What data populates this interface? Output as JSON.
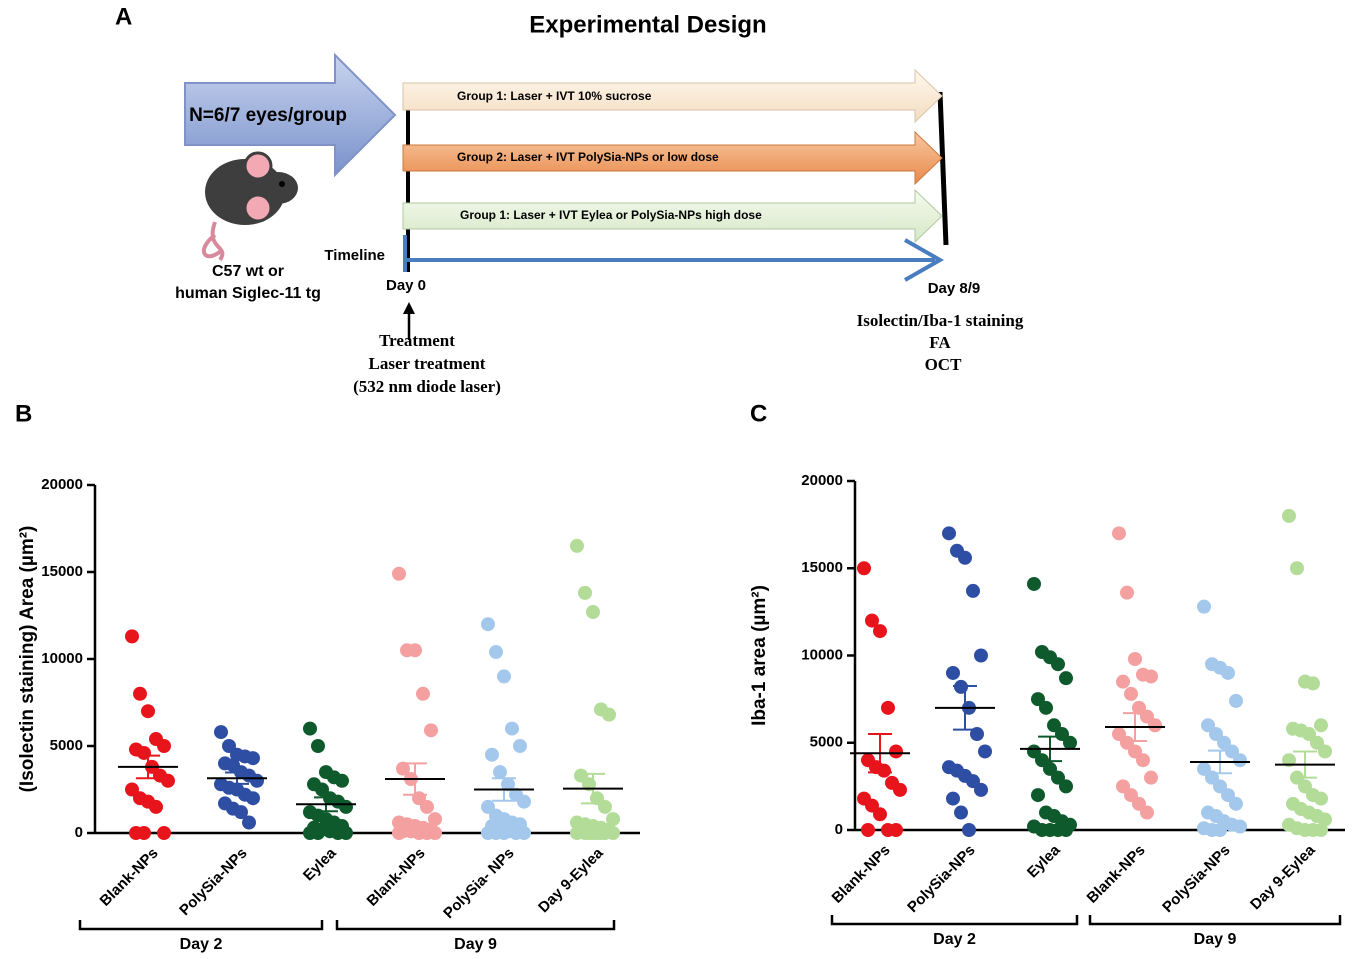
{
  "panel_a": {
    "label": "A",
    "title": "Experimental Design",
    "big_arrow": "N=6/7 eyes/group",
    "mouse_lines": [
      "C57 wt or",
      "human Siglec-11 tg"
    ],
    "groups": [
      "Group 1: Laser + IVT 10% sucrose",
      "Group 2: Laser + IVT PolySia-NPs or low dose",
      "Group 1: Laser + IVT Eylea or PolySia-NPs high dose"
    ],
    "timeline": "Timeline",
    "start": "Day 0",
    "end": "Day 8/9",
    "treatment_lines": [
      "Treatment",
      "Laser treatment",
      "(532 nm diode laser)"
    ],
    "readout_lines": [
      "Isolectin/Iba-1 staining",
      "FA",
      "OCT"
    ]
  },
  "chart_data": [
    {
      "type": "dotplot",
      "panel": "B",
      "y_label": "(Isolectin staining) Area (µm²)",
      "ylim": [
        0,
        20000
      ],
      "yticks": [
        0,
        5000,
        10000,
        15000,
        20000
      ],
      "day_groups": [
        "Day 2",
        "Day 9"
      ],
      "series": [
        {
          "name": "Blank-NPs",
          "color": "#e8141c",
          "values": [
            11300,
            8000,
            7000,
            5400,
            5000,
            4800,
            4600,
            3800,
            3300,
            3000,
            2500,
            2000,
            1800,
            1500,
            0,
            0,
            0
          ],
          "mean": 3800,
          "sem": 650
        },
        {
          "name": "PolySia-NPs",
          "color": "#2e4ea3",
          "values": [
            5800,
            5000,
            4500,
            4400,
            4300,
            4000,
            3900,
            3500,
            3300,
            3000,
            2800,
            2600,
            2500,
            2200,
            2000,
            1700,
            1400,
            1200,
            600
          ],
          "mean": 3150,
          "sem": 330
        },
        {
          "name": "Eylea",
          "color": "#0e5a2c",
          "values": [
            6000,
            5000,
            3500,
            3200,
            3000,
            2800,
            2500,
            2000,
            1800,
            1500,
            1200,
            1000,
            800,
            600,
            400,
            300,
            200,
            100,
            0,
            0,
            0,
            0
          ],
          "mean": 1650,
          "sem": 400
        },
        {
          "name": "Blank-NPs",
          "color": "#f4a0a0",
          "values": [
            14900,
            10500,
            10500,
            8000,
            5900,
            3700,
            3100,
            2000,
            1500,
            800,
            600,
            500,
            400,
            300,
            200,
            100,
            100,
            0,
            0,
            0,
            0
          ],
          "mean": 3100,
          "sem": 900
        },
        {
          "name": "PolySia- NPs",
          "color": "#a4c8ec",
          "values": [
            12000,
            10400,
            9000,
            6000,
            5000,
            4500,
            3500,
            2800,
            2200,
            1800,
            1500,
            1000,
            800,
            600,
            500,
            400,
            200,
            100,
            0,
            0,
            0,
            0,
            0
          ],
          "mean": 2500,
          "sem": 650
        },
        {
          "name": "Day 9-Eylea",
          "color": "#b2dc98",
          "values": [
            16500,
            13800,
            12700,
            7100,
            6800,
            3300,
            2800,
            2000,
            1500,
            800,
            600,
            500,
            400,
            300,
            200,
            100,
            0,
            0,
            0,
            0,
            0,
            0,
            0,
            0
          ],
          "mean": 2550,
          "sem": 850
        }
      ]
    },
    {
      "type": "dotplot",
      "panel": "C",
      "y_label": "Iba-1 area (µm²)",
      "ylim": [
        0,
        20000
      ],
      "yticks": [
        0,
        5000,
        10000,
        15000,
        20000
      ],
      "day_groups": [
        "Day 2",
        "Day 9"
      ],
      "series": [
        {
          "name": "Blank-NPs",
          "color": "#e8141c",
          "values": [
            15000,
            12000,
            11400,
            7000,
            4500,
            4000,
            3600,
            3400,
            2700,
            2300,
            1800,
            1400,
            900,
            0,
            0,
            0
          ],
          "mean": 4400,
          "sem": 1100
        },
        {
          "name": "PolySia-NPs",
          "color": "#2e4ea3",
          "values": [
            17000,
            16000,
            15600,
            13700,
            10000,
            9000,
            8200,
            7000,
            5500,
            4500,
            3600,
            3400,
            3100,
            2800,
            2300,
            1800,
            1000,
            0
          ],
          "mean": 7000,
          "sem": 1250
        },
        {
          "name": "Eylea",
          "color": "#0e5a2c",
          "values": [
            14100,
            10200,
            9900,
            9500,
            8700,
            7500,
            7000,
            6000,
            5500,
            5000,
            4500,
            4000,
            3500,
            3000,
            2500,
            2000,
            1000,
            800,
            500,
            300,
            200,
            0,
            0,
            0,
            0
          ],
          "mean": 4650,
          "sem": 700
        },
        {
          "name": "Blank-NPs",
          "color": "#f4a0a0",
          "values": [
            17000,
            13600,
            9800,
            8900,
            8800,
            8500,
            7800,
            7000,
            6500,
            6000,
            5500,
            5000,
            4500,
            4000,
            3000,
            2500,
            2000,
            1500,
            1000
          ],
          "mean": 5900,
          "sem": 800
        },
        {
          "name": "PolySia-NPs",
          "color": "#a4c8ec",
          "values": [
            12800,
            9500,
            9300,
            9000,
            7400,
            6000,
            5500,
            5000,
            4500,
            4000,
            3500,
            3000,
            2500,
            2000,
            1500,
            1000,
            800,
            500,
            300,
            200,
            100,
            0,
            0
          ],
          "mean": 3900,
          "sem": 650
        },
        {
          "name": "Day 9-Eylea",
          "color": "#b2dc98",
          "values": [
            18000,
            15000,
            8500,
            8400,
            6000,
            5800,
            5700,
            5500,
            5000,
            4500,
            4000,
            3000,
            2500,
            2000,
            1800,
            1500,
            1200,
            1000,
            800,
            600,
            300,
            100,
            0,
            0,
            0
          ],
          "mean": 3750,
          "sem": 750
        }
      ]
    }
  ]
}
